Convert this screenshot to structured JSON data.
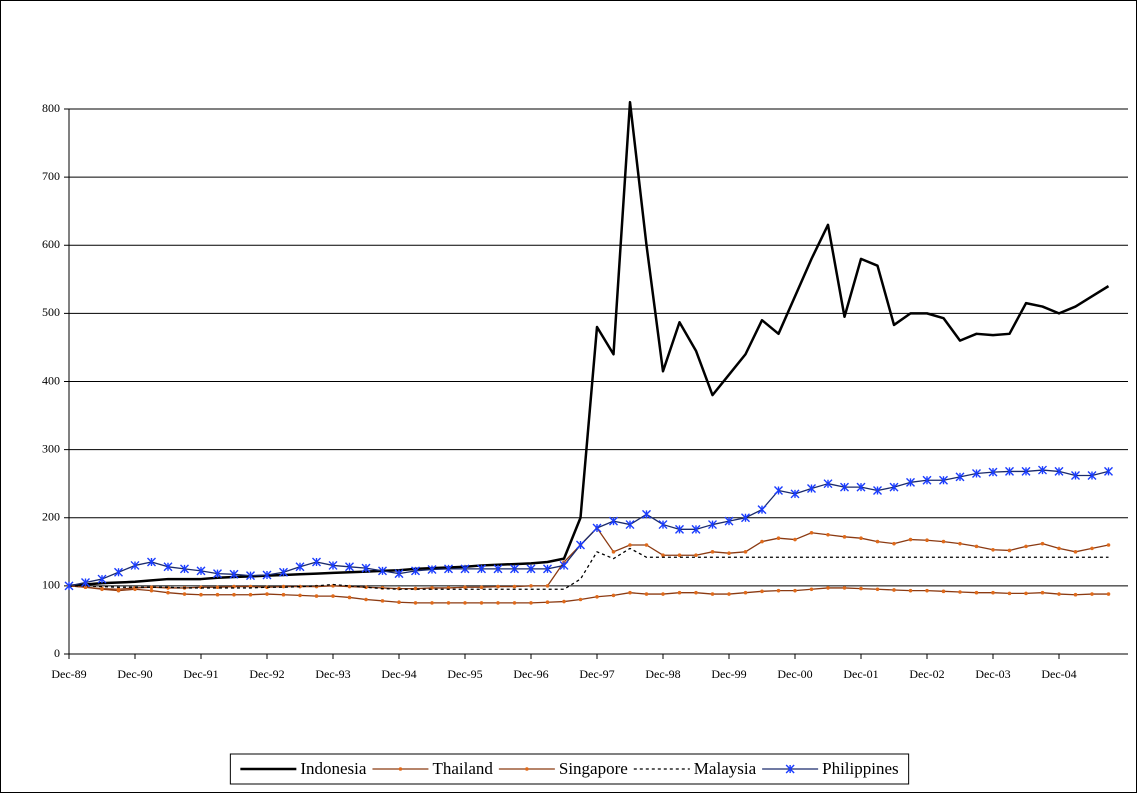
{
  "chart_data": {
    "type": "line",
    "categories": [
      "Dec-89",
      null,
      null,
      null,
      "Dec-90",
      null,
      null,
      null,
      "Dec-91",
      null,
      null,
      null,
      "Dec-92",
      null,
      null,
      null,
      "Dec-93",
      null,
      null,
      null,
      "Dec-94",
      null,
      null,
      null,
      "Dec-95",
      null,
      null,
      null,
      "Dec-96",
      null,
      null,
      null,
      "Dec-97",
      null,
      null,
      null,
      "Dec-98",
      null,
      null,
      null,
      "Dec-99",
      null,
      null,
      null,
      "Dec-00",
      null,
      null,
      null,
      "Dec-01",
      null,
      null,
      null,
      "Dec-02",
      null,
      null,
      null,
      "Dec-03",
      null,
      null,
      null,
      "Dec-04",
      null,
      null,
      null
    ],
    "ylim": [
      0,
      800
    ],
    "yticks": [
      0,
      100,
      200,
      300,
      400,
      500,
      600,
      700,
      800
    ],
    "grid": true,
    "legend": "bottom",
    "series": [
      {
        "name": "Indonesia",
        "color": "#000000",
        "style": "solid",
        "marker": "none",
        "values": [
          100,
          102,
          104,
          105,
          106,
          108,
          110,
          110,
          110,
          112,
          113,
          114,
          115,
          116,
          117,
          118,
          119,
          120,
          121,
          122,
          123,
          125,
          126,
          127,
          128,
          130,
          131,
          132,
          133,
          135,
          140,
          200,
          480,
          440,
          810,
          600,
          415,
          487,
          445,
          380,
          410,
          440,
          490,
          470,
          525,
          580,
          630,
          495,
          580,
          570,
          483,
          500,
          500,
          493,
          460,
          470,
          468,
          470,
          515,
          510,
          500,
          510,
          525,
          540
        ]
      },
      {
        "name": "Thailand",
        "color": "#8b3a12",
        "style": "solid",
        "marker": "dot",
        "values": [
          100,
          98,
          96,
          95,
          97,
          98,
          97,
          97,
          98,
          98,
          99,
          99,
          98,
          99,
          99,
          99,
          100,
          99,
          98,
          97,
          96,
          96,
          97,
          97,
          98,
          98,
          99,
          99,
          100,
          100,
          135,
          160,
          185,
          150,
          160,
          160,
          145,
          145,
          145,
          150,
          148,
          150,
          165,
          170,
          168,
          178,
          175,
          172,
          170,
          165,
          162,
          168,
          167,
          165,
          162,
          158,
          153,
          152,
          158,
          162,
          155,
          150,
          155,
          160
        ]
      },
      {
        "name": "Singapore",
        "color": "#8b3a12",
        "style": "solid",
        "marker": "dot",
        "values": [
          100,
          98,
          95,
          93,
          95,
          93,
          90,
          88,
          87,
          87,
          87,
          87,
          88,
          87,
          86,
          85,
          85,
          83,
          80,
          78,
          76,
          75,
          75,
          75,
          75,
          75,
          75,
          75,
          75,
          76,
          77,
          80,
          84,
          86,
          90,
          88,
          88,
          90,
          90,
          88,
          88,
          90,
          92,
          93,
          93,
          95,
          97,
          97,
          96,
          95,
          94,
          93,
          93,
          92,
          91,
          90,
          90,
          89,
          89,
          90,
          88,
          87,
          88,
          88
        ]
      },
      {
        "name": "Malaysia",
        "color": "#000000",
        "style": "dotted",
        "marker": "none",
        "values": [
          100,
          100,
          99,
          98,
          98,
          98,
          98,
          97,
          97,
          97,
          97,
          97,
          98,
          98,
          99,
          100,
          102,
          100,
          98,
          96,
          95,
          95,
          95,
          95,
          95,
          95,
          95,
          95,
          95,
          95,
          95,
          110,
          150,
          140,
          155,
          142,
          142,
          142,
          142,
          142,
          142,
          142,
          142,
          142,
          142,
          142,
          142,
          142,
          142,
          142,
          142,
          142,
          142,
          142,
          142,
          142,
          142,
          142,
          142,
          142,
          142,
          142,
          142,
          142
        ]
      },
      {
        "name": "Philippines",
        "color": "#1a2a6c",
        "style": "solid",
        "marker": "star",
        "values": [
          100,
          105,
          110,
          120,
          130,
          135,
          128,
          125,
          122,
          118,
          117,
          115,
          116,
          120,
          128,
          135,
          130,
          128,
          126,
          122,
          118,
          122,
          124,
          125,
          125,
          125,
          125,
          125,
          125,
          125,
          130,
          160,
          185,
          195,
          190,
          205,
          190,
          183,
          183,
          190,
          195,
          200,
          212,
          240,
          235,
          243,
          250,
          245,
          245,
          240,
          245,
          252,
          255,
          255,
          260,
          265,
          267,
          268,
          268,
          270,
          268,
          262,
          262,
          268
        ]
      }
    ]
  }
}
